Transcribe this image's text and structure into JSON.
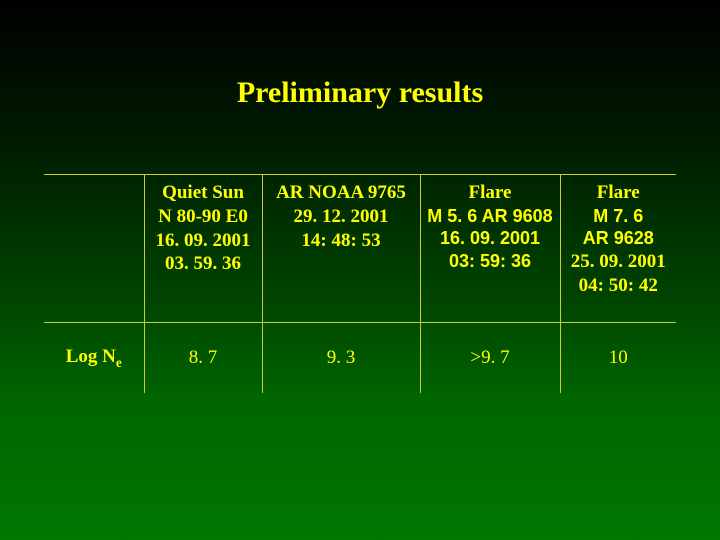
{
  "title": "Preliminary results",
  "columns": {
    "rowlabel_blank": "",
    "colA": {
      "header": "Quiet Sun",
      "line1": "N 80-90 E0",
      "line2": "16. 09. 2001",
      "line3": "03. 59. 36"
    },
    "colB": {
      "header": "AR NOAA 9765",
      "line1": "29. 12. 2001",
      "line2": "14: 48: 53"
    },
    "colC": {
      "header": "Flare",
      "line1": "M 5. 6 AR 9608",
      "line2": "16. 09. 2001",
      "line3": "03: 59: 36"
    },
    "colD": {
      "header": "Flare",
      "line1": "M 7. 6",
      "line2": "AR 9628",
      "line3": "25. 09. 2001",
      "line4": "04: 50: 42"
    }
  },
  "row": {
    "label_main": "Log N",
    "label_sub": "e",
    "valA": "8. 7",
    "valB": "9. 3",
    "valC": ">9. 7",
    "valD": "10"
  },
  "colors": {
    "text": "#ffff00",
    "border": "#cccc33",
    "bg_top": "#000000",
    "bg_bottom": "#007700"
  }
}
